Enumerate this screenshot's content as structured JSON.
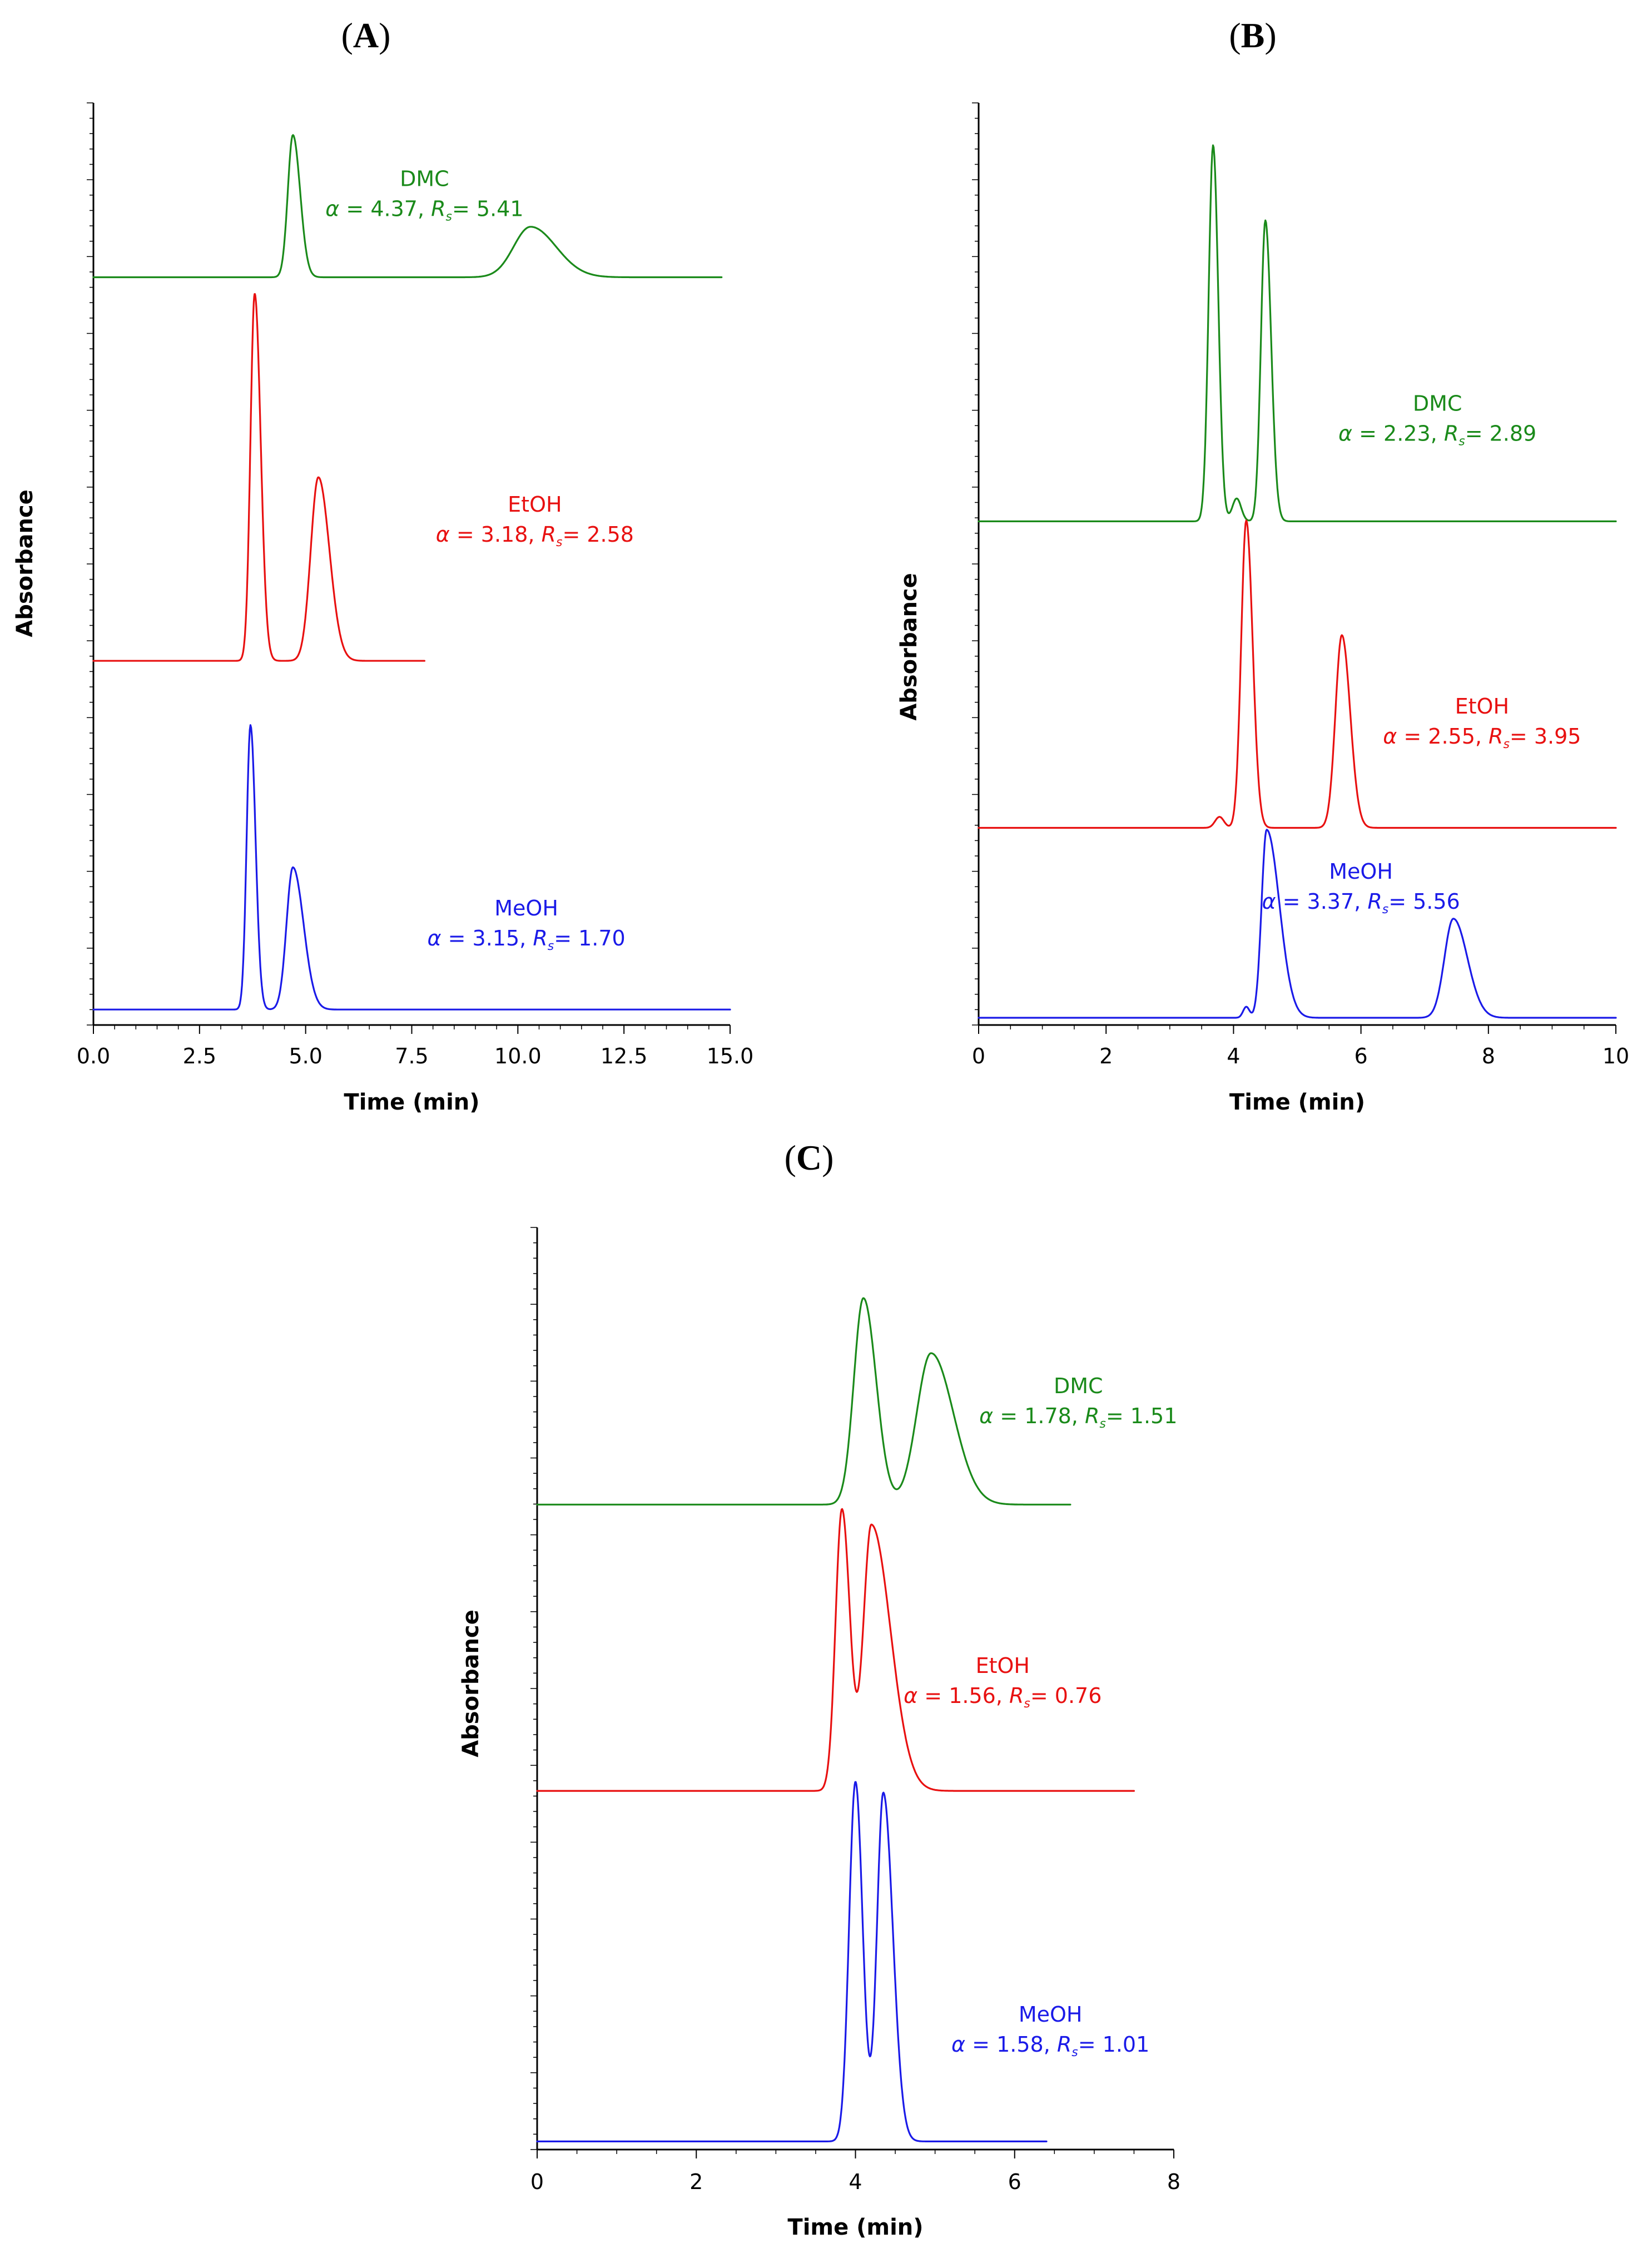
{
  "figure": {
    "title": ""
  },
  "chart_data": [
    {
      "id": "A",
      "panel_label": "A",
      "type": "line",
      "title": "(A)",
      "xlabel": "Time (min)",
      "ylabel": "Absorbance",
      "xlim": [
        0,
        15
      ],
      "x_ticks": [
        0,
        2.5,
        5,
        7.5,
        10,
        12.5,
        15
      ],
      "x_tick_labels": [
        "0.0",
        "2.5",
        "5.0",
        "7.5",
        "10.0",
        "12.5",
        "15.0"
      ],
      "x_minor_step": 0.5,
      "series": [
        {
          "name": "DMC",
          "color": "#1a8a1a",
          "baseline": 0.81,
          "x_end": 14.8,
          "peaks": [
            {
              "t": 4.7,
              "h": 0.155,
              "sl": 0.12,
              "sr": 0.17
            },
            {
              "t": 10.3,
              "h": 0.055,
              "sl": 0.4,
              "sr": 0.6
            }
          ],
          "label": "DMC",
          "alpha": "4.37",
          "rs": "5.41",
          "label_t": 7.8,
          "label_v": 0.895
        },
        {
          "name": "EtOH",
          "color": "#e81010",
          "baseline": 0.392,
          "x_end": 7.8,
          "peaks": [
            {
              "t": 3.8,
              "h": 0.4,
              "sl": 0.1,
              "sr": 0.14
            },
            {
              "t": 5.3,
              "h": 0.2,
              "sl": 0.18,
              "sr": 0.26
            }
          ],
          "label": "EtOH",
          "alpha": "3.18",
          "rs": "2.58",
          "label_t": 10.4,
          "label_v": 0.54
        },
        {
          "name": "MeOH",
          "color": "#1a1ae8",
          "baseline": 0.012,
          "x_end": 15,
          "peaks": [
            {
              "t": 3.7,
              "h": 0.31,
              "sl": 0.09,
              "sr": 0.12
            },
            {
              "t": 4.7,
              "h": 0.155,
              "sl": 0.15,
              "sr": 0.25
            }
          ],
          "label": "MeOH",
          "alpha": "3.15",
          "rs": "1.70",
          "label_t": 10.2,
          "label_v": 0.1
        }
      ]
    },
    {
      "id": "B",
      "panel_label": "B",
      "type": "line",
      "title": "(B)",
      "xlabel": "Time (min)",
      "ylabel": "Absorbance",
      "xlim": [
        0,
        10
      ],
      "x_ticks": [
        0,
        2,
        4,
        6,
        8,
        10
      ],
      "x_tick_labels": [
        "0",
        "2",
        "4",
        "6",
        "8",
        "10"
      ],
      "x_minor_step": 0.5,
      "series": [
        {
          "name": "DMC",
          "color": "#1a8a1a",
          "baseline": 0.544,
          "x_end": 10,
          "peaks": [
            {
              "t": 3.68,
              "h": 0.41,
              "sl": 0.07,
              "sr": 0.08
            },
            {
              "t": 4.05,
              "h": 0.025,
              "sl": 0.07,
              "sr": 0.07
            },
            {
              "t": 4.5,
              "h": 0.328,
              "sl": 0.07,
              "sr": 0.09
            }
          ],
          "label": "DMC",
          "alpha": "2.23",
          "rs": "2.89",
          "label_t": 7.2,
          "label_v": 0.65
        },
        {
          "name": "EtOH",
          "color": "#e81010",
          "baseline": 0.21,
          "x_end": 10,
          "peaks": [
            {
              "t": 3.78,
              "h": 0.012,
              "sl": 0.07,
              "sr": 0.07
            },
            {
              "t": 4.2,
              "h": 0.335,
              "sl": 0.08,
              "sr": 0.1
            },
            {
              "t": 5.7,
              "h": 0.21,
              "sl": 0.1,
              "sr": 0.13
            }
          ],
          "label": "EtOH",
          "alpha": "2.55",
          "rs": "3.95",
          "label_t": 7.9,
          "label_v": 0.32
        },
        {
          "name": "MeOH",
          "color": "#1a1ae8",
          "baseline": 0.003,
          "x_end": 10,
          "peaks": [
            {
              "t": 4.2,
              "h": 0.012,
              "sl": 0.05,
              "sr": 0.05
            },
            {
              "t": 4.52,
              "h": 0.205,
              "sl": 0.08,
              "sr": 0.2
            },
            {
              "t": 7.45,
              "h": 0.108,
              "sl": 0.14,
              "sr": 0.22
            }
          ],
          "label": "MeOH",
          "alpha": "3.37",
          "rs": "5.56",
          "label_t": 6.0,
          "label_v": 0.14
        }
      ]
    },
    {
      "id": "C",
      "panel_label": "C",
      "type": "line",
      "title": "(C)",
      "xlabel": "Time (min)",
      "ylabel": "Absorbance",
      "xlim": [
        0,
        8
      ],
      "x_ticks": [
        0,
        2,
        4,
        6,
        8
      ],
      "x_tick_labels": [
        "0",
        "2",
        "4",
        "6",
        "8"
      ],
      "x_minor_step": 0.5,
      "series": [
        {
          "name": "DMC",
          "color": "#1a8a1a",
          "baseline": 0.698,
          "x_end": 6.7,
          "peaks": [
            {
              "t": 4.1,
              "h": 0.225,
              "sl": 0.12,
              "sr": 0.16
            },
            {
              "t": 4.95,
              "h": 0.165,
              "sl": 0.18,
              "sr": 0.28
            }
          ],
          "label": "DMC",
          "alpha": "1.78",
          "rs": "1.51",
          "label_t": 6.8,
          "label_v": 0.805
        },
        {
          "name": "EtOH",
          "color": "#e81010",
          "baseline": 0.386,
          "x_end": 7.5,
          "peaks": [
            {
              "t": 3.83,
              "h": 0.307,
              "sl": 0.08,
              "sr": 0.1
            },
            {
              "t": 4.2,
              "h": 0.29,
              "sl": 0.1,
              "sr": 0.24
            }
          ],
          "label": "EtOH",
          "alpha": "1.56",
          "rs": "0.76",
          "label_t": 5.85,
          "label_v": 0.5
        },
        {
          "name": "MeOH",
          "color": "#1a1ae8",
          "baseline": 0.004,
          "x_end": 6.4,
          "peaks": [
            {
              "t": 4.0,
              "h": 0.392,
              "sl": 0.08,
              "sr": 0.09
            },
            {
              "t": 4.35,
              "h": 0.38,
              "sl": 0.08,
              "sr": 0.12
            }
          ],
          "label": "MeOH",
          "alpha": "1.58",
          "rs": "1.01",
          "label_t": 6.45,
          "label_v": 0.12
        }
      ]
    }
  ]
}
